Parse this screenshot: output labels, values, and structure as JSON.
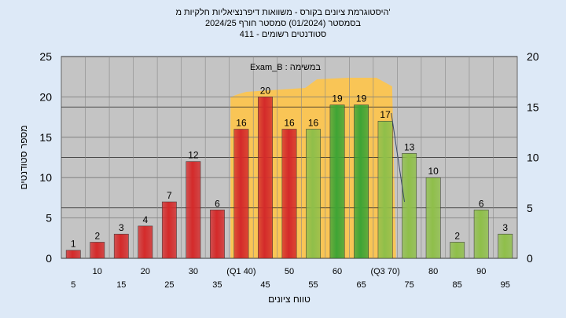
{
  "chart_data": {
    "type": "bar",
    "title_lines": [
      "היסטוגרמת ציונים בקורס - משוואות דיפרנציאליות חלקיות מ'",
      "בסמסטר  (01/2024)  סמסטר חורף  2024/25",
      "411 - סטודנטים רשומים"
    ],
    "xlabel": "טווח ציונים",
    "ylabel": "מספר סטודנטים",
    "ylim": [
      0,
      25
    ],
    "yticks": [
      0,
      5,
      10,
      15,
      20,
      25
    ],
    "y2lim": [
      0,
      20
    ],
    "y2ticks": [
      0,
      5,
      10,
      15,
      20
    ],
    "grid": true,
    "annotation": "Exam_B : במשימה",
    "categories": [
      "5",
      "10",
      "15",
      "20",
      "25",
      "30",
      "35",
      "(Q1 40)",
      "45",
      "50",
      "55",
      "60",
      "65",
      "(Q3 70)",
      "75",
      "80",
      "85",
      "90",
      "95"
    ],
    "values": [
      1,
      2,
      3,
      4,
      7,
      12,
      6,
      16,
      20,
      16,
      16,
      19,
      19,
      17,
      13,
      10,
      2,
      6,
      3
    ],
    "bar_colors": [
      "#d42a2a",
      "#d42a2a",
      "#d42a2a",
      "#d42a2a",
      "#d42a2a",
      "#d42a2a",
      "#d42a2a",
      "#d42a2a",
      "#d42a2a",
      "#d42a2a",
      "#8fbf4a",
      "#3fa435",
      "#3fa435",
      "#8fbf4a",
      "#8fbf4a",
      "#8fbf4a",
      "#8fbf4a",
      "#8fbf4a",
      "#8fbf4a"
    ],
    "colors": {
      "plot_bg": "#c4c4c4",
      "band": "#ffc54a",
      "page_bg": "#dde9f7"
    }
  }
}
